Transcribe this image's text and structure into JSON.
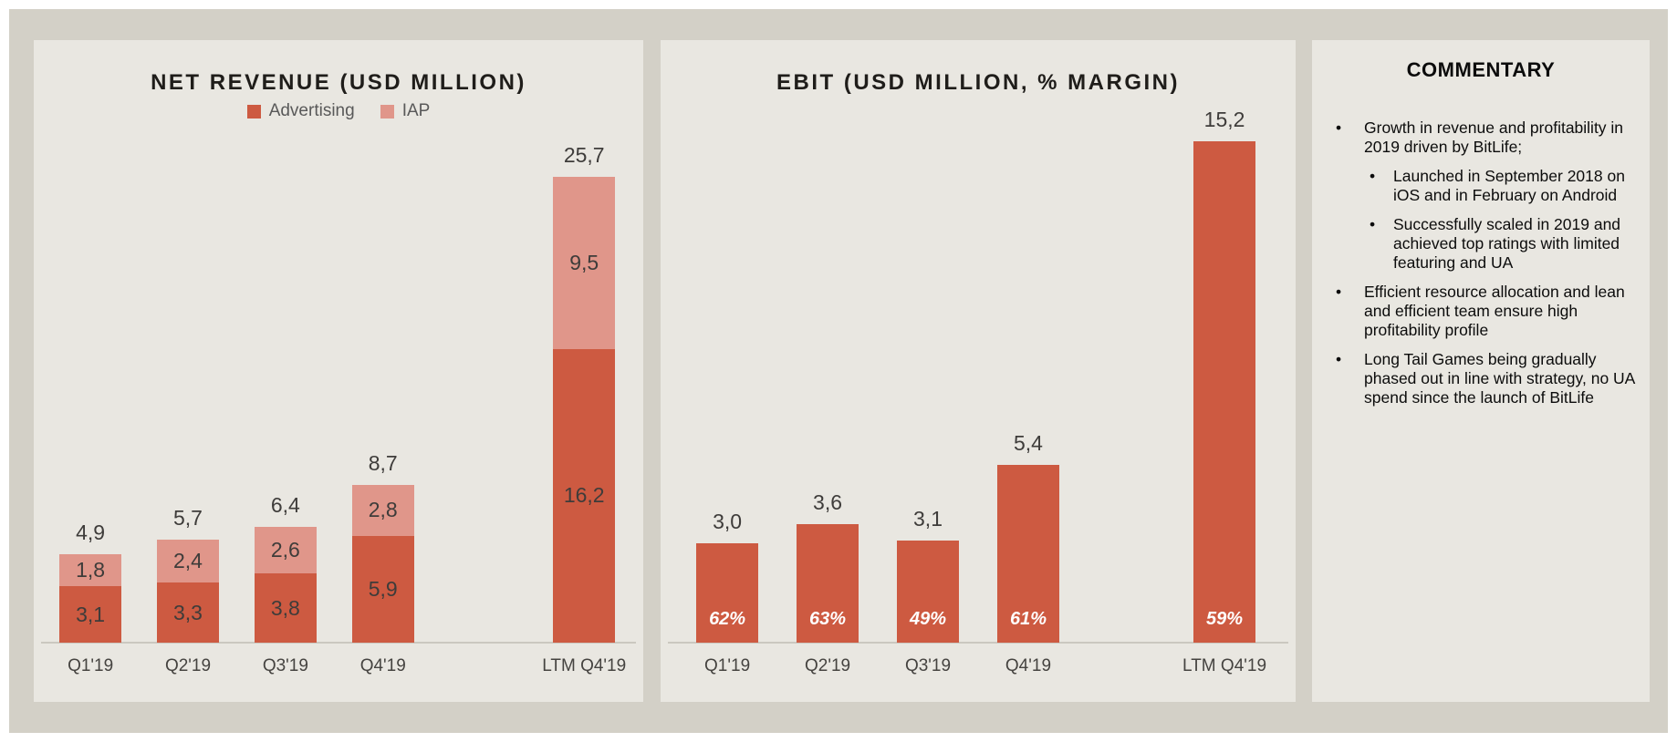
{
  "colors": {
    "page_bg": "#d3d0c7",
    "panel_bg": "#e9e7e1",
    "advertising": "#cd5a41",
    "iap": "#e0968a",
    "value_text": "#3e3c3a",
    "axis_line": "#cbc8c0",
    "margin_label_text": "#ffffff"
  },
  "chart_data": [
    {
      "type": "bar",
      "subtype": "stacked",
      "title": "NET REVENUE (USD MILLION)",
      "categories": [
        "Q1'19",
        "Q2'19",
        "Q3'19",
        "Q4'19",
        "LTM Q4'19"
      ],
      "series": [
        {
          "name": "Advertising",
          "values": [
            3.1,
            3.3,
            3.8,
            5.9,
            16.2
          ],
          "labels": [
            "3,1",
            "3,3",
            "3,8",
            "5,9",
            "16,2"
          ]
        },
        {
          "name": "IAP",
          "values": [
            1.8,
            2.4,
            2.6,
            2.8,
            9.5
          ],
          "labels": [
            "1,8",
            "2,4",
            "2,6",
            "2,8",
            "9,5"
          ]
        }
      ],
      "totals": [
        4.9,
        5.7,
        6.4,
        8.7,
        25.7
      ],
      "total_labels": [
        "4,9",
        "5,7",
        "6,4",
        "8,7",
        "25,7"
      ],
      "ylim": [
        0,
        27
      ],
      "grid": false,
      "legend_position": "top-center",
      "decimal_separator": ","
    },
    {
      "type": "bar",
      "title": "EBIT (USD MILLION, % MARGIN)",
      "categories": [
        "Q1'19",
        "Q2'19",
        "Q3'19",
        "Q4'19",
        "LTM Q4'19"
      ],
      "values": [
        3.0,
        3.6,
        3.1,
        5.4,
        15.2
      ],
      "value_labels": [
        "3,0",
        "3,6",
        "3,1",
        "5,4",
        "15,2"
      ],
      "margin_labels": [
        "62%",
        "63%",
        "49%",
        "61%",
        "59%"
      ],
      "ylim": [
        0,
        16
      ],
      "grid": false,
      "legend_position": "none",
      "decimal_separator": ","
    }
  ],
  "commentary": {
    "title": "COMMENTARY",
    "bullets": [
      {
        "level": 1,
        "text": "Growth in revenue and profitability in 2019 driven by BitLife;"
      },
      {
        "level": 2,
        "text": "Launched in September 2018 on iOS and in February on Android"
      },
      {
        "level": 2,
        "text": "Successfully scaled in 2019 and achieved top ratings with limited featuring and UA"
      },
      {
        "level": 1,
        "text": "Efficient resource allocation and lean and efficient team ensure high profitability profile"
      },
      {
        "level": 1,
        "text": "Long Tail Games being gradually phased out in line with strategy, no UA spend since the launch of BitLife"
      }
    ]
  }
}
